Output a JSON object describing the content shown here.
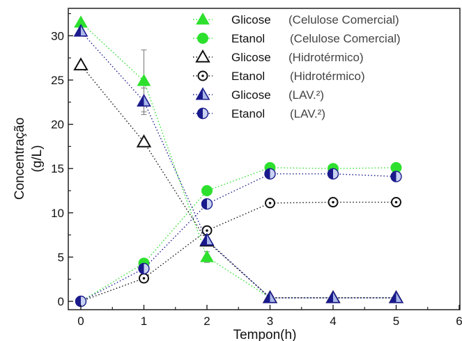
{
  "chart_data": {
    "type": "scatter",
    "xlabel": "Tempon(h)",
    "ylabel_lines": [
      "Concentração",
      "(g/L)"
    ],
    "xlim": [
      0,
      6
    ],
    "ylim": [
      0,
      32
    ],
    "x_ticks": [
      0,
      1,
      2,
      3,
      4,
      5,
      6
    ],
    "y_ticks": [
      0,
      5,
      10,
      15,
      20,
      25,
      30
    ],
    "grid": false,
    "legend_position": "top-right",
    "series": [
      {
        "name": "Glicose",
        "condition": "(Celulose Comercial)",
        "marker": "triangle-filled",
        "color": "#2ee02e",
        "line_style": "dotted",
        "x": [
          0,
          1,
          2,
          3,
          4,
          5
        ],
        "y": [
          31.5,
          24.9,
          5.0,
          0.4,
          0.4,
          0.4
        ],
        "error": [
          0,
          3.5,
          0.6,
          0,
          0,
          0
        ]
      },
      {
        "name": "Etanol",
        "condition": "(Celulose Comercial)",
        "marker": "circle-filled",
        "color": "#2ee02e",
        "line_style": "dotted",
        "x": [
          0,
          1,
          2,
          3,
          4,
          5
        ],
        "y": [
          0,
          4.3,
          12.5,
          15.1,
          15.0,
          15.1
        ],
        "error": [
          0,
          0,
          0,
          0,
          0,
          0
        ]
      },
      {
        "name": "Glicose",
        "condition": "(Hidrotérmico)",
        "marker": "triangle-open",
        "color": "#111111",
        "line_style": "dotted",
        "x": [
          0,
          1,
          2,
          3,
          4,
          5
        ],
        "y": [
          26.7,
          18.0,
          6.8,
          0.4,
          0.4,
          0.4
        ],
        "error": [
          0,
          0,
          0,
          0,
          0,
          0
        ]
      },
      {
        "name": "Etanol",
        "condition": "(Hidrotérmico)",
        "marker": "circle-open-dot",
        "color": "#111111",
        "line_style": "dotted",
        "x": [
          0,
          1,
          2,
          3,
          4,
          5
        ],
        "y": [
          0,
          2.6,
          8.0,
          11.1,
          11.2,
          11.2
        ],
        "error": [
          0,
          0,
          0,
          0,
          0,
          0
        ]
      },
      {
        "name": "Glicose",
        "condition": "(LAV.²)",
        "marker": "triangle-half",
        "color": "#1a1a8c",
        "line_style": "dotted",
        "x": [
          0,
          1,
          2,
          3,
          4,
          5
        ],
        "y": [
          30.5,
          22.6,
          6.9,
          0.4,
          0.4,
          0.4
        ],
        "error": [
          0,
          1.5,
          0,
          0,
          0,
          0
        ]
      },
      {
        "name": "Etanol",
        "condition": "(LAV.²)",
        "marker": "circle-half",
        "color": "#1a1a8c",
        "line_style": "dotted",
        "x": [
          0,
          1,
          2,
          3,
          4,
          5
        ],
        "y": [
          0,
          3.7,
          11.0,
          14.4,
          14.4,
          14.1
        ],
        "error": [
          0,
          0,
          0,
          0,
          0,
          0
        ]
      }
    ]
  }
}
